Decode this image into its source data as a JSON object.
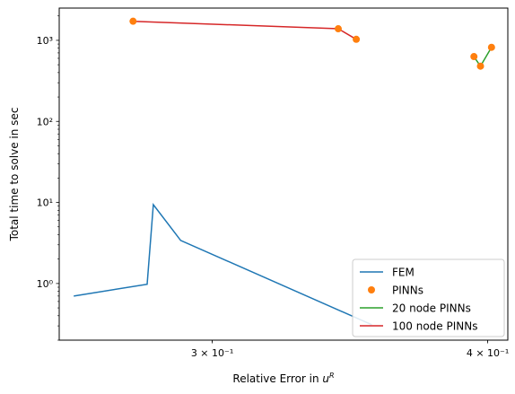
{
  "chart_data": {
    "type": "line",
    "xlabel": "Relative Error in $u^R$",
    "xlabel_parts": {
      "base": "Relative Error in ",
      "var": "u",
      "sup": "R"
    },
    "ylabel": "Total time to solve in sec",
    "xscale": "log",
    "yscale": "log",
    "xlim": [
      0.2557,
      0.4085
    ],
    "ylim": [
      0.2,
      2500
    ],
    "x_ticks": [
      {
        "value": 0.3,
        "label": "3 × 10⁻¹"
      },
      {
        "value": 0.4,
        "label": "4 × 10⁻¹"
      }
    ],
    "y_ticks": [
      {
        "value": 1,
        "label": "10⁰"
      },
      {
        "value": 10,
        "label": "10¹"
      },
      {
        "value": 100,
        "label": "10²"
      },
      {
        "value": 1000,
        "label": "10³"
      }
    ],
    "grid": false,
    "legend_position": "lower right",
    "series": [
      {
        "name": "FEM",
        "style": "line",
        "color": "#1f77b4",
        "points": [
          [
            0.2596,
            0.7
          ],
          [
            0.2803,
            0.98
          ],
          [
            0.2821,
            9.4
          ],
          [
            0.2903,
            3.4
          ],
          [
            0.3544,
            0.31
          ]
        ]
      },
      {
        "name": "PINNs",
        "style": "marker",
        "color": "#ff7f0e",
        "points": [
          [
            0.2762,
            1720
          ],
          [
            0.3422,
            1390
          ],
          [
            0.3487,
            1030
          ],
          [
            0.3943,
            630
          ],
          [
            0.397,
            480
          ],
          [
            0.4016,
            820
          ]
        ]
      },
      {
        "name": "20 node PINNs",
        "style": "line",
        "color": "#2ca02c",
        "points": [
          [
            0.3943,
            630
          ],
          [
            0.397,
            480
          ],
          [
            0.4016,
            820
          ]
        ]
      },
      {
        "name": "100 node PINNs",
        "style": "line",
        "color": "#d62728",
        "points": [
          [
            0.2762,
            1720
          ],
          [
            0.3422,
            1390
          ],
          [
            0.3487,
            1030
          ]
        ]
      }
    ]
  }
}
